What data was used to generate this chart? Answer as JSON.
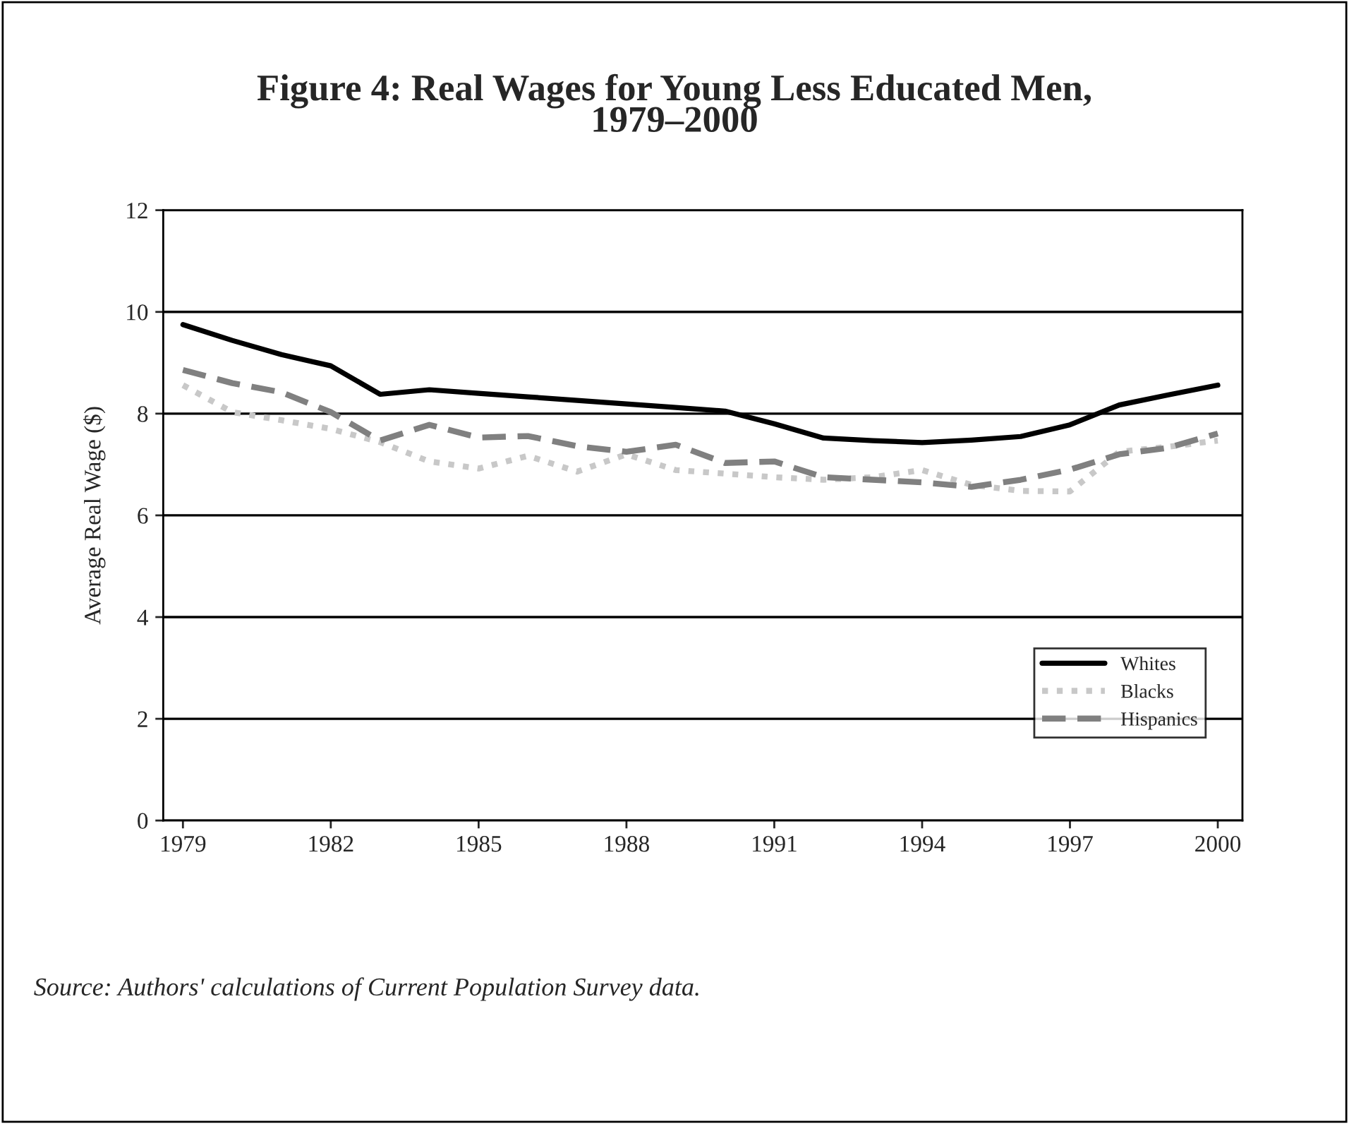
{
  "chart_data": {
    "type": "line",
    "title": "Figure 4: Real Wages for Young Less Educated Men,\n1979–2000",
    "ylabel": "Average Real Wage ($)",
    "x": [
      1979,
      1980,
      1981,
      1982,
      1983,
      1984,
      1985,
      1986,
      1987,
      1988,
      1989,
      1990,
      1991,
      1992,
      1993,
      1994,
      1995,
      1996,
      1997,
      1998,
      1999,
      2000
    ],
    "series": [
      {
        "name": "Whites",
        "color": "#000000",
        "line_style": "solid",
        "values": [
          9.75,
          9.44,
          9.16,
          8.94,
          8.38,
          8.47,
          8.4,
          8.33,
          8.26,
          8.19,
          8.12,
          8.05,
          7.8,
          7.52,
          7.47,
          7.43,
          7.48,
          7.55,
          7.78,
          8.17,
          8.37,
          8.56
        ]
      },
      {
        "name": "Blacks",
        "color": "#c8c8c8",
        "line_style": "dotted",
        "values": [
          8.56,
          8.03,
          7.87,
          7.7,
          7.44,
          7.06,
          6.92,
          7.17,
          6.86,
          7.2,
          6.89,
          6.82,
          6.75,
          6.7,
          6.75,
          6.89,
          6.6,
          6.48,
          6.47,
          7.25,
          7.35,
          7.47
        ]
      },
      {
        "name": "Hispanics",
        "color": "#808080",
        "line_style": "dashed",
        "values": [
          8.86,
          8.6,
          8.42,
          8.03,
          7.47,
          7.78,
          7.53,
          7.56,
          7.36,
          7.25,
          7.39,
          7.03,
          7.06,
          6.75,
          6.7,
          6.65,
          6.56,
          6.7,
          6.9,
          7.2,
          7.33,
          7.61
        ]
      }
    ],
    "xlim": [
      1978.6,
      2000.5
    ],
    "xticks": [
      1979,
      1982,
      1985,
      1988,
      1991,
      1994,
      1997,
      2000
    ],
    "ylim": [
      0,
      12
    ],
    "yticks": [
      0,
      2,
      4,
      6,
      8,
      10,
      12
    ],
    "grid": "y",
    "legend": "bottom right",
    "annotations": [
      "Source: Authors' calculations of Current Population Survey data."
    ]
  }
}
